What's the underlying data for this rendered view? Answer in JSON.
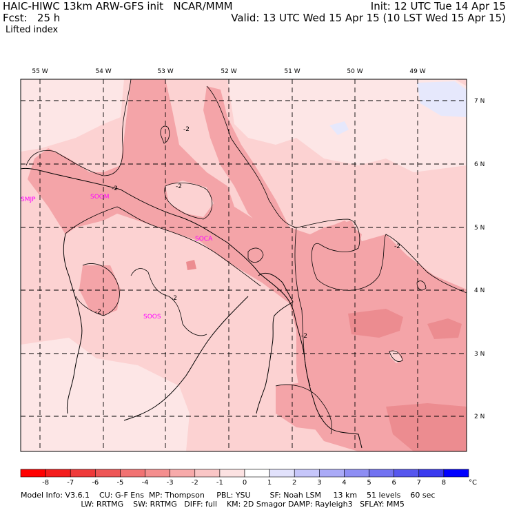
{
  "header": {
    "line1_left": "HAIC-HIWC 13km ARW-GFS init   NCAR/MMM",
    "line1_right": "Init: 12 UTC Tue 14 Apr 15",
    "line2_left": "Fcst:   25 h",
    "line2_right": "Valid: 13 UTC Wed 15 Apr 15 (10 LST Wed 15 Apr 15)",
    "field_label": "Lifted index"
  },
  "map": {
    "lon_labels": [
      "55 W",
      "54 W",
      "53 W",
      "52 W",
      "51 W",
      "50 W",
      "49 W"
    ],
    "lat_labels": [
      "7 N",
      "6 N",
      "5 N",
      "4 N",
      "3 N",
      "2 N"
    ],
    "stations": [
      "SMJP",
      "SOGM",
      "SOCA",
      "SOOS"
    ],
    "contour_label": "-2",
    "colors": {
      "light_pink": "#fcd2d2",
      "medium_pink": "#f4a4a8",
      "darker_pink": "#ec8c90",
      "very_light": "#fde6e6",
      "light_blue": "#e6e8fc",
      "station_text": "#ff00ff"
    }
  },
  "colorbar": {
    "labels": [
      "-8",
      "-7",
      "-6",
      "-5",
      "-4",
      "-3",
      "-2",
      "-1",
      "0",
      "1",
      "2",
      "3",
      "4",
      "5",
      "6",
      "7",
      "8"
    ],
    "unit": "°C",
    "colors": [
      "#ff0000",
      "#f41c1c",
      "#ef3a3a",
      "#ee5656",
      "#f17272",
      "#f48e8e",
      "#f7aaaa",
      "#fac6c6",
      "#fce2e2",
      "#ffffff",
      "#e2e2fc",
      "#c6c6fa",
      "#aaaaf7",
      "#8e8ef4",
      "#7272f1",
      "#5656ee",
      "#3a3aef",
      "#0000ff"
    ]
  },
  "footer": {
    "line1": "Model Info: V3.6.1    CU: G-F Ens  MP: Thompson     PBL: YSU        SF: Noah LSM     13 km    51 levels    60 sec",
    "line2": "                         LW: RRTMG    SW: RRTMG   DIFF: full    KM: 2D Smagor DAMP: Rayleigh3   SFLAY: MM5"
  }
}
